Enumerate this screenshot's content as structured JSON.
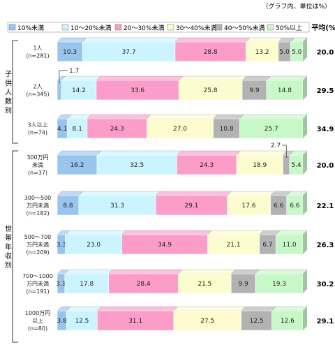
{
  "chart_data": {
    "type": "bar",
    "orientation": "horizontal",
    "stacked": true,
    "percent_stacked": true,
    "xlim": [
      0,
      100
    ],
    "note": "（グラフ内、単位は%）",
    "avg_header": "平均(%)",
    "legend": {
      "placement": "top",
      "items": [
        {
          "name": "10%未満",
          "color": "#99c4ee"
        },
        {
          "name": "10～20%未満",
          "color": "#ccf4ff"
        },
        {
          "name": "20～30%未満",
          "color": "#fb9cc9"
        },
        {
          "name": "30～40%未満",
          "color": "#fdfcce"
        },
        {
          "name": "40～50%未満",
          "color": "#b2b2b2"
        },
        {
          "name": "50%以上",
          "color": "#c8f8c8"
        }
      ]
    },
    "groups": [
      {
        "name": "子供人数別",
        "rows": [
          0,
          1,
          2
        ]
      },
      {
        "name": "世帯年収別",
        "rows": [
          3,
          4,
          5,
          6,
          7
        ]
      }
    ],
    "rows": [
      {
        "label": [
          "1人",
          "(n=281)"
        ],
        "values": [
          10.3,
          37.7,
          28.8,
          13.2,
          5.0,
          5.0
        ],
        "average": "20.0"
      },
      {
        "label": [
          "2人",
          "(n=345)"
        ],
        "values": [
          1.7,
          14.2,
          33.6,
          25.8,
          9.9,
          14.8
        ],
        "average": "29.5"
      },
      {
        "label": [
          "3人以上",
          "(n=74)"
        ],
        "values": [
          4.1,
          8.1,
          24.3,
          27.0,
          10.8,
          25.7
        ],
        "average": "34.9"
      },
      {
        "label": [
          "300万円",
          "未満",
          "(n=37)"
        ],
        "values": [
          16.2,
          32.5,
          24.3,
          18.9,
          2.7,
          5.4
        ],
        "average": "20.0"
      },
      {
        "label": [
          "300～500",
          "万円未満",
          "(n=182)"
        ],
        "values": [
          8.8,
          31.3,
          29.1,
          17.6,
          6.6,
          6.6
        ],
        "average": "22.1"
      },
      {
        "label": [
          "500～700",
          "万円未満",
          "(n=209)"
        ],
        "values": [
          3.3,
          23.0,
          34.9,
          21.1,
          6.7,
          11.0
        ],
        "average": "26.3"
      },
      {
        "label": [
          "700～1000",
          "万円未満",
          "(n=191)"
        ],
        "values": [
          3.1,
          17.8,
          28.4,
          21.5,
          9.9,
          19.3
        ],
        "average": "30.2"
      },
      {
        "label": [
          "1000万円",
          "以上",
          "(n=80)"
        ],
        "values": [
          3.8,
          12.5,
          31.1,
          27.5,
          12.5,
          12.6
        ],
        "average": "29.1"
      }
    ]
  }
}
